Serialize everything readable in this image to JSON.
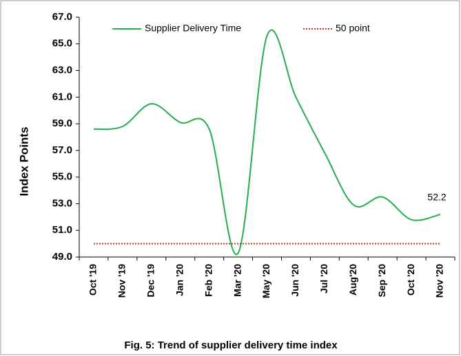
{
  "chart_data": {
    "type": "line",
    "title": "Fig. 5: Trend of supplier delivery time index",
    "y_label": "Index Points",
    "categories": [
      "Oct '19",
      "Nov '19",
      "Dec '19",
      "Jan '20",
      "Feb '20",
      "Mar '20",
      "May '20",
      "Jun '20",
      "Jul '20",
      "Aug'20",
      "Sep '20",
      "Oct '20",
      "Nov '20"
    ],
    "series": [
      {
        "name": "Supplier Delivery Time",
        "color": "#22b04a",
        "style": "solid",
        "values": [
          58.6,
          58.8,
          60.5,
          59.1,
          58.6,
          49.3,
          65.6,
          61.0,
          56.8,
          52.9,
          53.5,
          51.8,
          52.2
        ]
      },
      {
        "name": "50 point",
        "color": "#c0392b",
        "style": "dotted",
        "values": [
          50,
          50,
          50,
          50,
          50,
          50,
          50,
          50,
          50,
          50,
          50,
          50,
          50
        ]
      }
    ],
    "ylim": [
      49,
      67
    ],
    "yticks": [
      {
        "value": 49,
        "label": "49.0"
      },
      {
        "value": 51,
        "label": "51.0"
      },
      {
        "value": 53,
        "label": "53.0"
      },
      {
        "value": 55,
        "label": "55.0"
      },
      {
        "value": 57,
        "label": "57.0"
      },
      {
        "value": 59,
        "label": "59.0"
      },
      {
        "value": 61,
        "label": "61.0"
      },
      {
        "value": 63,
        "label": "63.0"
      },
      {
        "value": 65,
        "label": "65.0"
      },
      {
        "value": 67,
        "label": "67.0"
      }
    ],
    "grid": false,
    "legend": "top"
  }
}
